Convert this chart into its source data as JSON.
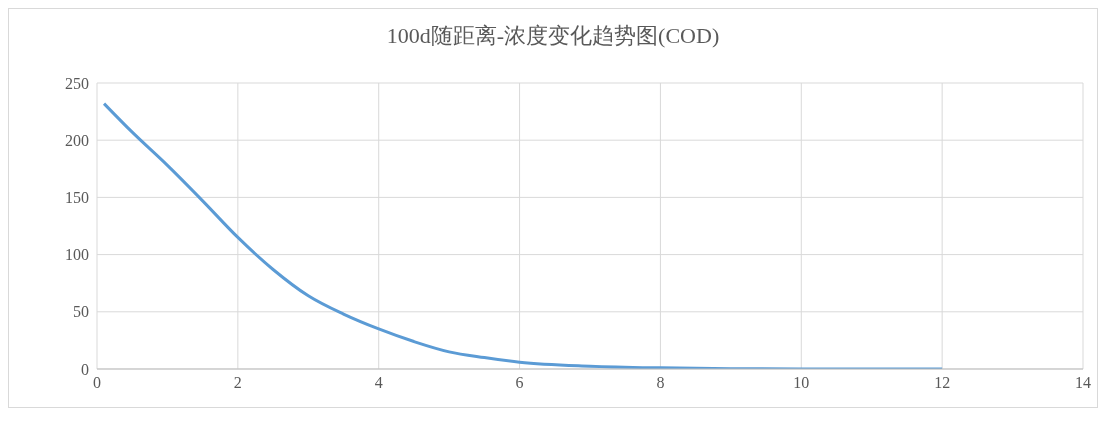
{
  "chart_data": {
    "type": "line",
    "title": "100d随距离-浓度变化趋势图(COD)",
    "x": [
      0.1,
      0.5,
      1,
      1.5,
      2,
      2.5,
      3,
      3.5,
      4,
      4.5,
      5,
      5.5,
      6,
      7,
      8,
      9,
      10,
      11,
      12
    ],
    "series": [
      {
        "color": "#5b9bd5",
        "values": [
          232,
          207,
          178,
          147,
          115,
          87,
          64,
          48,
          35,
          24,
          15,
          10,
          6,
          2.5,
          1,
          0.3,
          0.1,
          0,
          0
        ]
      }
    ],
    "xlim": [
      0,
      14
    ],
    "xticks": [
      0,
      2,
      4,
      6,
      8,
      10,
      12,
      14
    ],
    "ylim": [
      0,
      250
    ],
    "yticks": [
      0,
      50,
      100,
      150,
      200,
      250
    ],
    "grid": true,
    "legend": false,
    "marker": "none",
    "line_style": "solid"
  }
}
